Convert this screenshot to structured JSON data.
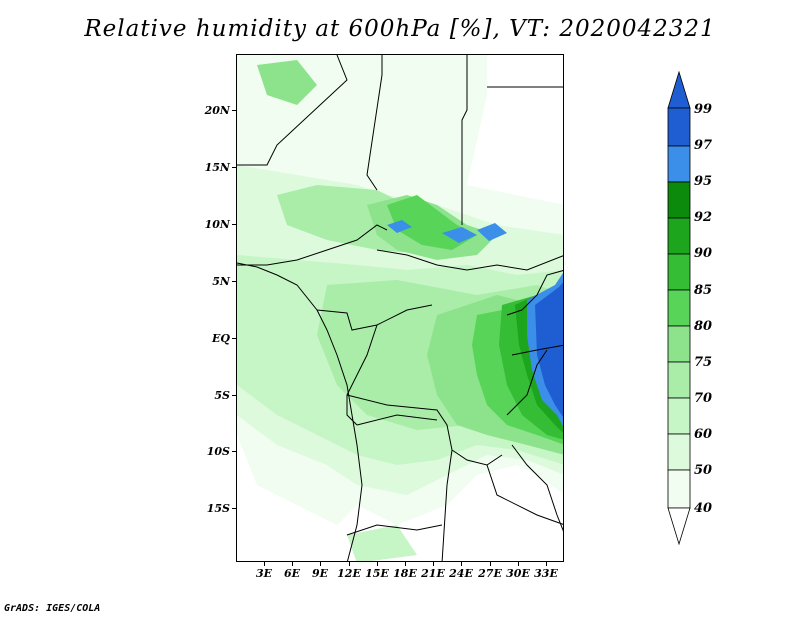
{
  "title": "Relative humidity at 600hPa [%], VT: 2020042321",
  "credit": "GrADS: IGES/COLA",
  "map": {
    "lat_labels": [
      "20N",
      "15N",
      "10N",
      "5N",
      "EQ",
      "5S",
      "10S",
      "15S"
    ],
    "lon_labels": [
      "3E",
      "6E",
      "9E",
      "12E",
      "15E",
      "18E",
      "21E",
      "24E",
      "27E",
      "30E",
      "33E"
    ],
    "lat_range": [
      -20,
      25
    ],
    "lon_range": [
      0,
      35
    ]
  },
  "colorbar": {
    "levels": [
      "99",
      "97",
      "95",
      "92",
      "90",
      "85",
      "80",
      "75",
      "70",
      "60",
      "50",
      "40"
    ],
    "colors": {
      "above_97": "#1f5ed2",
      "c95_97": "#3c8fe8",
      "c92_95": "#0b8a0b",
      "c90_92": "#1ea51e",
      "c85_90": "#35bd35",
      "c80_85": "#58d458",
      "c75_80": "#8ce38c",
      "c70_75": "#a9eda9",
      "c60_70": "#c6f5c6",
      "c50_60": "#ddfadd",
      "c40_50": "#f0fdf0",
      "below_40": "#ffffff"
    }
  }
}
